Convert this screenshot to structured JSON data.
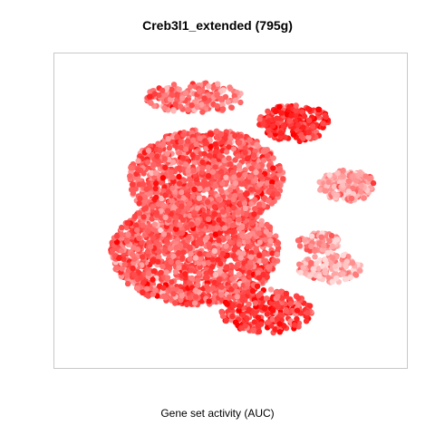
{
  "chart_data": {
    "type": "scatter",
    "title": "Creb3l1_extended (795g)",
    "xlabel": "Gene set activity (AUC)",
    "ylabel": "",
    "grid": false,
    "legend": "none",
    "color_scale": {
      "low": "#ffd8d8",
      "high": "#ff0000"
    },
    "clusters": [
      {
        "name": "",
        "cx": 0.4,
        "cy": 0.63,
        "rx": 0.24,
        "ry": 0.17,
        "n": 1600,
        "activity": 0.55
      },
      {
        "name": "",
        "cx": 0.43,
        "cy": 0.4,
        "rx": 0.22,
        "ry": 0.16,
        "n": 1400,
        "activity": 0.55
      },
      {
        "name": "",
        "cx": 0.6,
        "cy": 0.82,
        "rx": 0.13,
        "ry": 0.07,
        "n": 260,
        "activity": 0.7
      },
      {
        "name": "",
        "cx": 0.83,
        "cy": 0.42,
        "rx": 0.08,
        "ry": 0.05,
        "n": 180,
        "activity": 0.25
      },
      {
        "name": "",
        "cx": 0.75,
        "cy": 0.6,
        "rx": 0.06,
        "ry": 0.03,
        "n": 90,
        "activity": 0.3
      },
      {
        "name": "",
        "cx": 0.78,
        "cy": 0.68,
        "rx": 0.09,
        "ry": 0.05,
        "n": 140,
        "activity": 0.2
      },
      {
        "name": "",
        "cx": 0.68,
        "cy": 0.22,
        "rx": 0.1,
        "ry": 0.06,
        "n": 220,
        "activity": 0.8
      },
      {
        "name": "",
        "cx": 0.4,
        "cy": 0.14,
        "rx": 0.14,
        "ry": 0.05,
        "n": 200,
        "activity": 0.45
      }
    ]
  }
}
